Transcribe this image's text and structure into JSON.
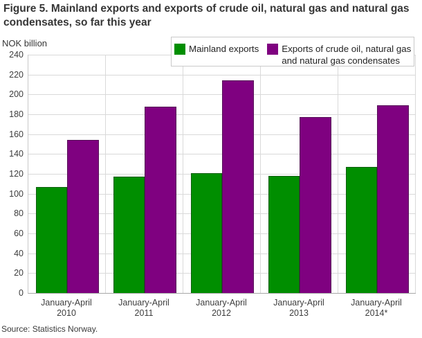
{
  "figure": {
    "title": "Figure 5. Mainland exports and exports of crude oil, natural gas and natural gas condensates, so far this year",
    "axis_unit": "NOK billion",
    "source": "Source: Statistics Norway."
  },
  "legend": {
    "items": [
      {
        "label": "Mainland exports"
      },
      {
        "label": "Exports of crude oil, natural gas and natural gas condensates"
      }
    ]
  },
  "colors": {
    "mainland_green": "#008E00",
    "oil_gas_purple": "#7F0180",
    "gridline": "#D9D9D9",
    "axis_line": "#A6A6A6",
    "plot_border": "#C9C9C9",
    "title_text": "#363636",
    "tick_text": "#3D3D3D"
  },
  "chart_data": {
    "type": "bar",
    "title": "Figure 5. Mainland exports and exports of crude oil, natural gas and natural gas condensates, so far this year",
    "categories": [
      "January-April 2010",
      "January-April 2011",
      "January-April 2012",
      "January-April 2013",
      "January-April 2014*"
    ],
    "category_lines": [
      [
        "January-April",
        "2010"
      ],
      [
        "January-April",
        "2011"
      ],
      [
        "January-April",
        "2012"
      ],
      [
        "January-April",
        "2013"
      ],
      [
        "January-April",
        "2014*"
      ]
    ],
    "series": [
      {
        "name": "Mainland exports",
        "color_key": "mainland_green",
        "values": [
          107,
          117,
          121,
          118,
          127
        ]
      },
      {
        "name": "Exports of crude oil, natural gas and natural gas condensates",
        "color_key": "oil_gas_purple",
        "values": [
          154,
          188,
          214,
          177,
          189
        ]
      }
    ],
    "xlabel": "",
    "ylabel": "NOK billion",
    "ylim": [
      0,
      240
    ],
    "ytick_step": 20,
    "grid": true,
    "legend_position": "top-right",
    "source": "Source: Statistics Norway."
  }
}
